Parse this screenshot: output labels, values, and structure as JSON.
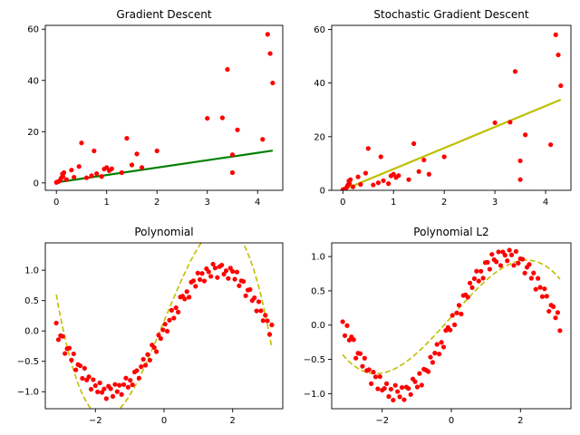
{
  "chart_data": [
    {
      "type": "scatter",
      "title": "Gradient Descent",
      "xlim": [
        -0.22,
        4.5
      ],
      "ylim": [
        -2.9,
        61.5
      ],
      "xticks": [
        0,
        1,
        2,
        3,
        4
      ],
      "yticks": [
        0,
        20,
        40,
        60
      ],
      "grid": false,
      "series": [
        {
          "kind": "points",
          "color": "#ff0000",
          "points": [
            [
              0.0,
              0.2
            ],
            [
              0.02,
              0.4
            ],
            [
              0.05,
              0.6
            ],
            [
              0.08,
              1.2
            ],
            [
              0.1,
              2.0
            ],
            [
              0.12,
              3.5
            ],
            [
              0.13,
              2.5
            ],
            [
              0.15,
              4.0
            ],
            [
              0.2,
              1.3
            ],
            [
              0.3,
              5.0
            ],
            [
              0.35,
              2.2
            ],
            [
              0.45,
              6.4
            ],
            [
              0.5,
              15.6
            ],
            [
              0.6,
              2.0
            ],
            [
              0.7,
              2.8
            ],
            [
              0.75,
              12.5
            ],
            [
              0.8,
              3.6
            ],
            [
              0.9,
              2.5
            ],
            [
              0.95,
              5.4
            ],
            [
              1.0,
              6.0
            ],
            [
              1.05,
              4.8
            ],
            [
              1.1,
              5.5
            ],
            [
              1.3,
              4.0
            ],
            [
              1.4,
              17.4
            ],
            [
              1.5,
              7.0
            ],
            [
              1.6,
              11.3
            ],
            [
              1.7,
              6.0
            ],
            [
              2.0,
              12.5
            ],
            [
              3.0,
              25.2
            ],
            [
              3.3,
              25.4
            ],
            [
              3.4,
              44.3
            ],
            [
              3.5,
              4.0
            ],
            [
              3.5,
              11.0
            ],
            [
              3.6,
              20.7
            ],
            [
              4.1,
              17.0
            ],
            [
              4.2,
              58.0
            ],
            [
              4.25,
              50.5
            ],
            [
              4.3,
              39.0
            ]
          ]
        },
        {
          "kind": "fit-line",
          "color": "#008000",
          "x": [
            0.0,
            4.3
          ],
          "y": [
            0.2,
            12.6
          ]
        }
      ]
    },
    {
      "type": "scatter",
      "title": "Stochastic Gradient Descent",
      "xlim": [
        -0.22,
        4.5
      ],
      "ylim": [
        0,
        61.5
      ],
      "xticks": [
        0,
        1,
        2,
        3,
        4
      ],
      "yticks": [
        0,
        20,
        40,
        60
      ],
      "grid": false,
      "series": [
        {
          "kind": "points",
          "color": "#ff0000",
          "points": [
            [
              0.0,
              0.2
            ],
            [
              0.02,
              0.4
            ],
            [
              0.05,
              0.6
            ],
            [
              0.08,
              1.2
            ],
            [
              0.1,
              2.0
            ],
            [
              0.12,
              3.5
            ],
            [
              0.13,
              2.5
            ],
            [
              0.15,
              4.0
            ],
            [
              0.2,
              1.3
            ],
            [
              0.3,
              5.0
            ],
            [
              0.35,
              2.2
            ],
            [
              0.45,
              6.4
            ],
            [
              0.5,
              15.6
            ],
            [
              0.6,
              2.0
            ],
            [
              0.7,
              2.8
            ],
            [
              0.75,
              12.5
            ],
            [
              0.8,
              3.6
            ],
            [
              0.9,
              2.5
            ],
            [
              0.95,
              5.4
            ],
            [
              1.0,
              6.0
            ],
            [
              1.05,
              4.8
            ],
            [
              1.1,
              5.5
            ],
            [
              1.3,
              4.0
            ],
            [
              1.4,
              17.4
            ],
            [
              1.5,
              7.0
            ],
            [
              1.6,
              11.3
            ],
            [
              1.7,
              6.0
            ],
            [
              2.0,
              12.5
            ],
            [
              3.0,
              25.2
            ],
            [
              3.3,
              25.4
            ],
            [
              3.4,
              44.3
            ],
            [
              3.5,
              4.0
            ],
            [
              3.5,
              11.0
            ],
            [
              3.6,
              20.7
            ],
            [
              4.1,
              17.0
            ],
            [
              4.2,
              58.0
            ],
            [
              4.25,
              50.5
            ],
            [
              4.3,
              39.0
            ]
          ]
        },
        {
          "kind": "fit-line",
          "color": "#bfbf00",
          "x": [
            0.0,
            4.3
          ],
          "y": [
            0.1,
            33.8
          ]
        }
      ]
    },
    {
      "type": "scatter",
      "title": "Polynomial",
      "xlim": [
        -3.46,
        3.46
      ],
      "ylim": [
        -1.28,
        1.45
      ],
      "xticks": [
        -2,
        0,
        2
      ],
      "yticks": [
        -1.0,
        -0.5,
        0.0,
        0.5,
        1.0
      ],
      "tick_labels_y": [
        "−1.0",
        "−0.5",
        "0.0",
        "0.5",
        "1.0"
      ],
      "tick_labels_x": [
        "−2",
        "0",
        "2"
      ],
      "grid": false,
      "series": [
        {
          "kind": "sine-points",
          "color": "#ff0000",
          "n": 100,
          "x_range": [
            -3.14159,
            3.14159
          ],
          "noise": [
            0.13,
            -0.08,
            0.05,
            0.1,
            -0.12,
            0.02,
            0.09,
            -0.05,
            0.11,
            -0.1,
            0.04,
            0.07,
            -0.09,
            0.12,
            -0.03,
            0.06,
            -0.11,
            0.08,
            0.01,
            -0.07,
            0.1,
            -0.04,
            0.03,
            -0.12,
            0.09,
            0.05,
            -0.08,
            0.11,
            -0.02,
            0.07,
            -0.1,
            0.04,
            0.12,
            -0.06,
            0.02,
            -0.09,
            0.08,
            0.06,
            -0.11,
            0.03,
            0.1,
            -0.05,
            0.07,
            -0.08,
            0.11,
            0.01,
            -0.12,
            0.09,
            -0.03,
            0.05,
            0.08,
            -0.1,
            0.02,
            0.12,
            -0.07,
            0.04,
            -0.09,
            0.1,
            0.06,
            -0.04,
            0.03,
            -0.11,
            0.09,
            0.07,
            -0.06,
            0.12,
            -0.02,
            0.05,
            -0.1,
            0.08,
            0.01,
            -0.08,
            0.11,
            0.04,
            -0.12,
            0.06,
            0.09,
            -0.05,
            0.02,
            -0.09,
            0.1,
            0.07,
            -0.03,
            0.12,
            -0.07,
            0.05,
            0.08,
            -0.11,
            0.03,
            0.09,
            -0.04,
            0.06,
            -0.1,
            0.11,
            0.02,
            -0.08,
            0.07,
            0.04,
            -0.12,
            0.1
          ]
        },
        {
          "kind": "cubic-dashed",
          "color": "#bfbf00",
          "coef": [
            0.16,
            1.37,
            0.0,
            -0.153
          ],
          "x_range": [
            -3.14159,
            3.14159
          ]
        }
      ]
    },
    {
      "type": "scatter",
      "title": "Polynomial L2",
      "xlim": [
        -3.46,
        3.46
      ],
      "ylim": [
        -1.22,
        1.2
      ],
      "xticks": [
        -2,
        0,
        2
      ],
      "yticks": [
        -1.0,
        -0.5,
        0.0,
        0.5,
        1.0
      ],
      "tick_labels_y": [
        "−1.0",
        "−0.5",
        "0.0",
        "0.5",
        "1.0"
      ],
      "tick_labels_x": [
        "−2",
        "0",
        "2"
      ],
      "grid": false,
      "series": [
        {
          "kind": "sine-points",
          "color": "#ff0000",
          "n": 100,
          "x_range": [
            -3.14159,
            3.14159
          ],
          "noise": [
            0.05,
            -0.09,
            0.12,
            -0.03,
            0.08,
            0.1,
            -0.11,
            0.02,
            0.07,
            -0.06,
            0.11,
            -0.02,
            0.04,
            -0.12,
            0.09,
            0.06,
            -0.08,
            0.13,
            -0.04,
            0.01,
            0.1,
            -0.07,
            0.05,
            -0.1,
            0.12,
            0.03,
            -0.05,
            0.08,
            -0.11,
            0.06,
            0.02,
            -0.09,
            0.11,
            0.04,
            -0.07,
            0.09,
            -0.12,
            0.07,
            0.01,
            -0.06,
            0.1,
            -0.03,
            0.05,
            0.12,
            -0.08,
            0.03,
            -0.1,
            0.08,
            0.06,
            -0.04,
            0.11,
            -0.09,
            0.02,
            0.07,
            -0.12,
            0.09,
            0.04,
            -0.05,
            0.1,
            -0.02,
            0.06,
            0.12,
            -0.07,
            0.03,
            -0.11,
            0.08,
            0.05,
            -0.08,
            0.11,
            0.01,
            -0.04,
            0.09,
            -0.12,
            0.07,
            0.02,
            -0.06,
            0.1,
            0.04,
            -0.1,
            0.12,
            -0.03,
            0.06,
            0.08,
            -0.09,
            0.03,
            0.11,
            -0.05,
            0.07,
            -0.12,
            0.09,
            0.01,
            -0.07,
            0.1,
            0.05,
            -0.11,
            0.04,
            0.08,
            -0.02,
            0.12,
            -0.08
          ]
        },
        {
          "kind": "cubic-dashed",
          "color": "#bfbf00",
          "coef": [
            0.12,
            0.57,
            0.0,
            -0.04
          ],
          "x_range": [
            -3.14159,
            3.14159
          ]
        }
      ]
    }
  ]
}
